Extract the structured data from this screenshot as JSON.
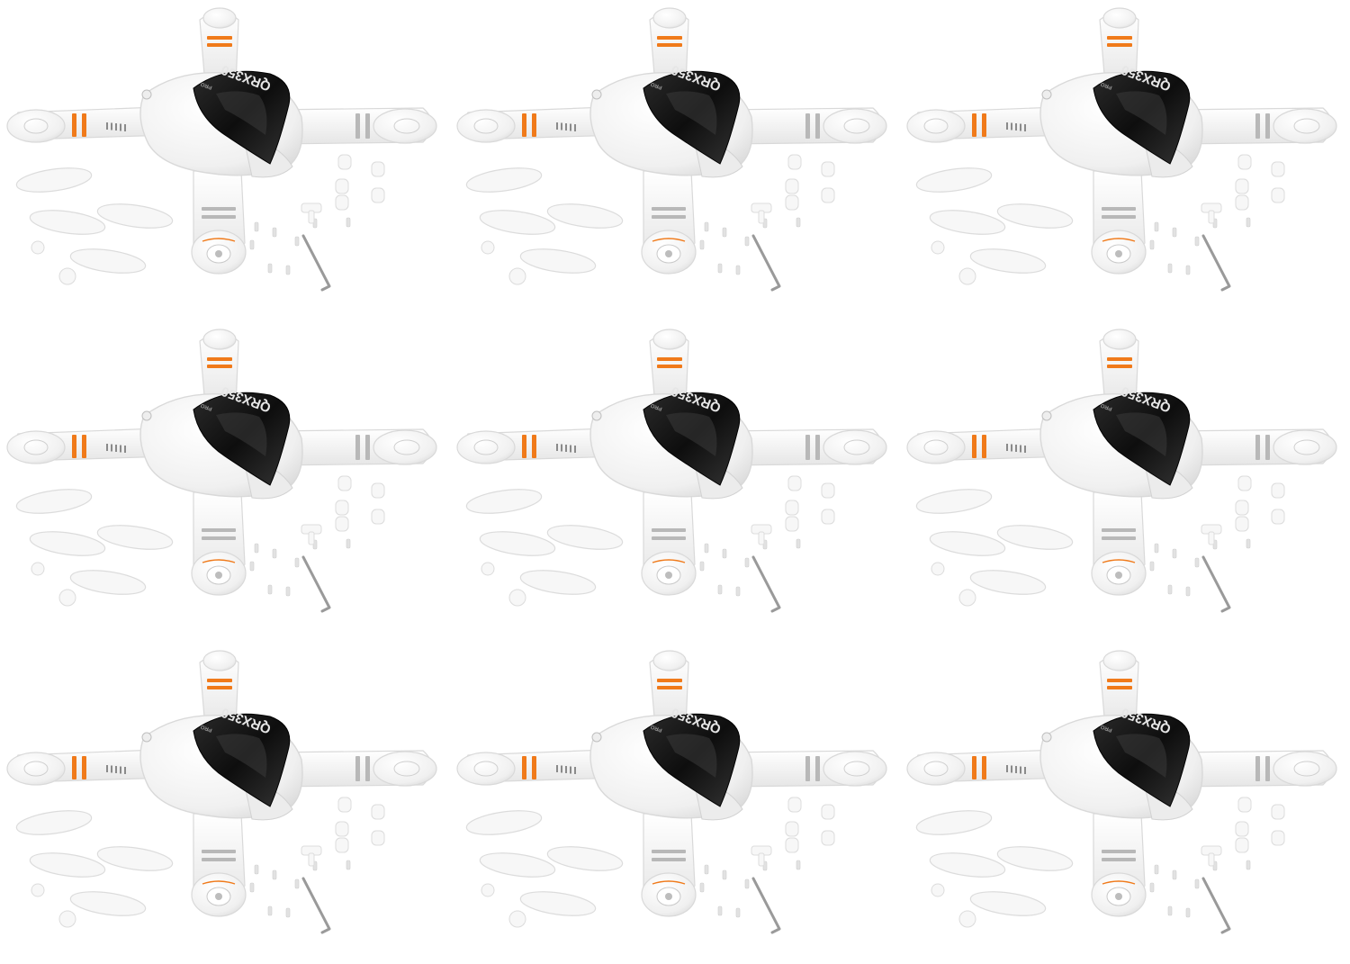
{
  "product": {
    "canopy_text": "QRX350",
    "badge_text": "PRO"
  },
  "grid": {
    "columns": 3,
    "rows": 3,
    "count": 9
  },
  "colors": {
    "background": "#ffffff",
    "body": "#f4f4f4",
    "body_shadow": "#d9d9d9",
    "canopy": "#111111",
    "stripe_orange": "#f07a1a",
    "stripe_gray": "#b8b8b8",
    "logo_text": "#e6e6e6"
  }
}
